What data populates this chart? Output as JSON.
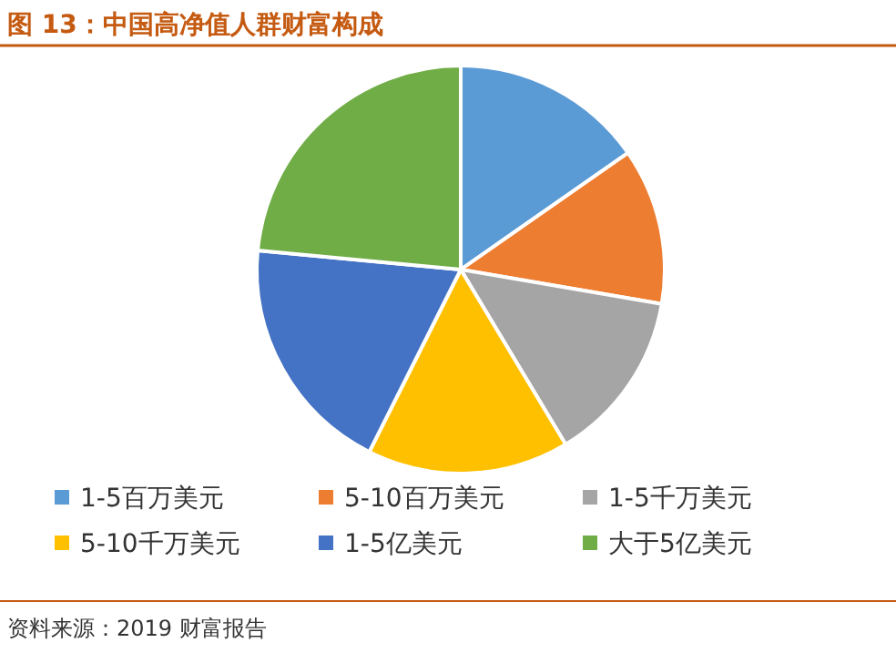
{
  "chart_data": {
    "type": "pie",
    "title": "图 13：中国高净值人群财富构成",
    "categories": [
      "1-5百万美元",
      "5-10百万美元",
      "1-5千万美元",
      "5-10千万美元",
      "1-5亿美元",
      "大于5亿美元"
    ],
    "values": [
      15.3,
      12.4,
      13.7,
      16.0,
      19.1,
      23.5
    ],
    "colors": [
      "#5b9bd5",
      "#ed7d31",
      "#a5a5a5",
      "#ffc000",
      "#4472c4",
      "#70ad47"
    ],
    "legend": "bottom",
    "annotations": [
      "资料来源：2019 财富报告"
    ]
  }
}
